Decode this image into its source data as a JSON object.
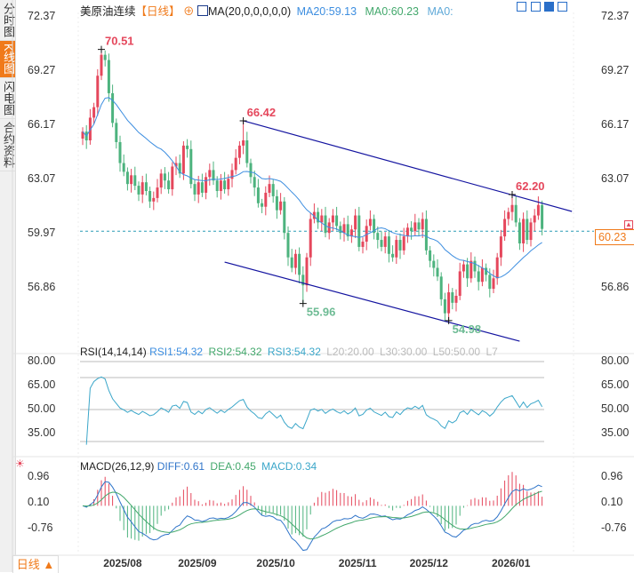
{
  "sidebar": {
    "tabs": [
      {
        "label": "分时图",
        "active": false
      },
      {
        "label": "K线图",
        "active": true
      },
      {
        "label": "闪电图",
        "active": false
      },
      {
        "label": "合约资料",
        "active": false
      }
    ]
  },
  "header": {
    "instrument": "美原油连续",
    "period": "【日线】",
    "ma_label": "MA(20,0,0,0,0,0)",
    "ma20": "MA20:59.13",
    "ma0a": "MA0:60.23",
    "ma0b": "MA0:",
    "toolbar_icons": [
      "crosshair-icon",
      "range-icon",
      "draw-icon",
      "exit-icon"
    ]
  },
  "rsi_header": {
    "name": "RSI(14,14,14)",
    "rsi1": "RSI1:54.32",
    "rsi2": "RSI2:54.32",
    "rsi3": "RSI3:54.32",
    "l20": "L20:20.00",
    "l30": "L30:30.00",
    "l50": "L50:50.00",
    "l7": "L7"
  },
  "macd_header": {
    "name": "MACD(26,12,9)",
    "diff": "DIFF:0.61",
    "dea": "DEA:0.45",
    "macd": "MACD:0.34"
  },
  "bottom_tab": "日线 ▲",
  "colors": {
    "up": "#e5475c",
    "down": "#4db37e",
    "ma": "#3d8ee0",
    "trend": "#1414a0",
    "accent": "#f07a1a",
    "rsi": "#3aa6c9",
    "diff": "#2f74c9",
    "dea": "#43a86c"
  },
  "chart_data": {
    "type": "candlestick",
    "price_axis": {
      "ticks": [
        "72.37",
        "69.27",
        "66.17",
        "63.07",
        "59.97",
        "56.86"
      ],
      "range": [
        54.5,
        72.37
      ]
    },
    "current_price": "60.23",
    "annotations": [
      {
        "label": "70.51",
        "index": 5,
        "price": 70.51,
        "kind": "high"
      },
      {
        "label": "66.42",
        "index": 43,
        "price": 66.42,
        "kind": "high"
      },
      {
        "label": "55.96",
        "index": 59,
        "price": 55.96,
        "kind": "low"
      },
      {
        "label": "54.98",
        "index": 98,
        "price": 54.98,
        "kind": "low"
      },
      {
        "label": "62.20",
        "index": 115,
        "price": 62.2,
        "kind": "high"
      }
    ],
    "trendlines": [
      {
        "from": [
          43,
          66.42
        ],
        "to": [
          131,
          61.23
        ]
      },
      {
        "from": [
          38,
          58.33
        ],
        "to": [
          117,
          53.8
        ]
      }
    ],
    "closes": [
      65.8,
      65.3,
      66.6,
      67.2,
      69.0,
      70.2,
      69.9,
      68.0,
      66.3,
      65.2,
      64.0,
      63.5,
      62.8,
      63.3,
      62.7,
      62.2,
      62.9,
      62.4,
      61.8,
      62.0,
      62.6,
      63.4,
      63.0,
      62.5,
      63.8,
      64.0,
      63.4,
      65.0,
      64.8,
      62.8,
      62.2,
      62.9,
      62.3,
      63.2,
      63.6,
      63.0,
      62.4,
      63.0,
      62.5,
      63.1,
      63.6,
      64.3,
      65.0,
      65.3,
      64.0,
      63.2,
      62.6,
      61.7,
      61.5,
      62.3,
      62.8,
      62.1,
      61.3,
      61.8,
      60.0,
      58.6,
      58.0,
      58.8,
      57.6,
      57.0,
      58.6,
      60.8,
      61.2,
      60.6,
      61.0,
      60.0,
      60.6,
      61.0,
      60.4,
      60.0,
      60.5,
      59.8,
      60.2,
      61.0,
      59.2,
      59.5,
      60.4,
      60.8,
      60.0,
      59.6,
      59.2,
      59.8,
      58.8,
      58.6,
      59.6,
      59.0,
      59.8,
      60.3,
      60.1,
      60.6,
      60.2,
      60.8,
      59.0,
      58.4,
      58.0,
      57.5,
      56.2,
      55.4,
      56.6,
      56.0,
      56.4,
      57.8,
      58.2,
      57.4,
      58.4,
      57.8,
      57.2,
      58.0,
      57.6,
      56.8,
      57.4,
      58.6,
      59.8,
      60.8,
      61.2,
      61.6,
      60.6,
      59.4,
      60.8,
      59.6,
      60.6,
      61.0,
      61.6,
      60.23
    ],
    "dates": [
      {
        "label": "2025/08",
        "index": 11
      },
      {
        "label": "2025/09",
        "index": 31
      },
      {
        "label": "2025/10",
        "index": 52
      },
      {
        "label": "2025/11",
        "index": 74
      },
      {
        "label": "2025/12",
        "index": 93
      },
      {
        "label": "2026/01",
        "index": 115
      }
    ],
    "rsi_axis": {
      "ticks": [
        "80.00",
        "65.00",
        "50.00",
        "35.00"
      ]
    },
    "macd_axis": {
      "ticks": [
        "0.96",
        "0.10",
        "-0.76"
      ]
    }
  }
}
